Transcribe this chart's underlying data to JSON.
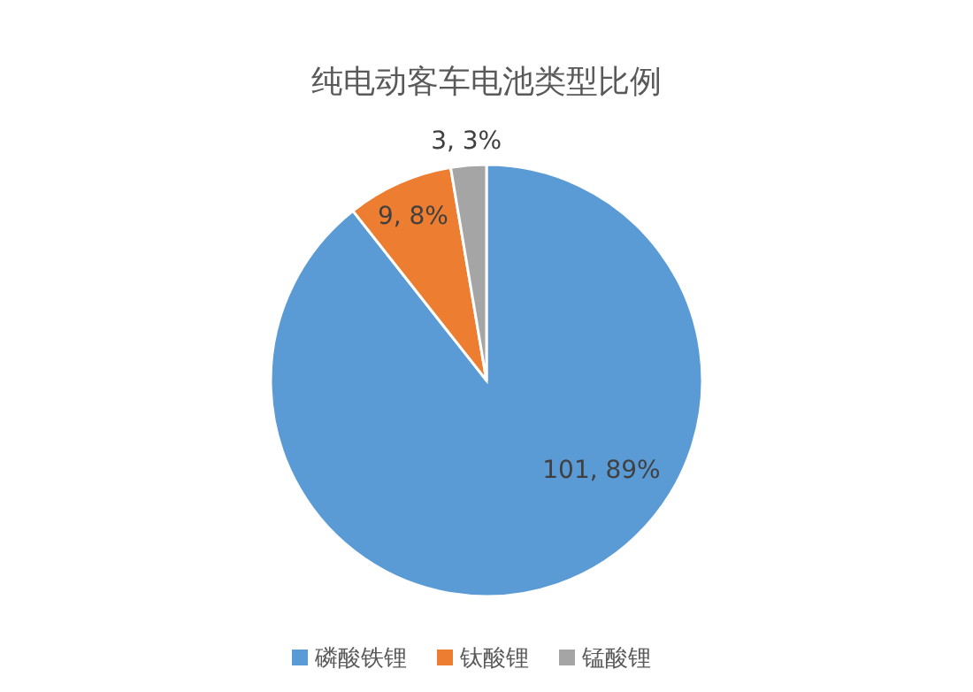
{
  "chart_data": {
    "type": "pie",
    "title": "纯电动客车电池类型比例",
    "categories": [
      "磷酸铁锂",
      "钛酸锂",
      "锰酸锂"
    ],
    "values": [
      101,
      9,
      3
    ],
    "colors": [
      "#5b9bd5",
      "#ed7d31",
      "#a5a5a5"
    ],
    "value_labels": [
      "101, 89%",
      "9, 8%",
      "3, 3%"
    ],
    "legend": "bottom"
  }
}
